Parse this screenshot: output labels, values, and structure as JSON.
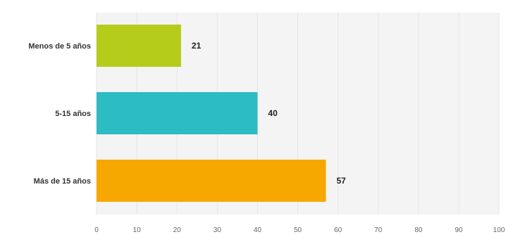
{
  "chart_data": {
    "type": "bar",
    "orientation": "horizontal",
    "categories": [
      "Menos de 5 años",
      "5-15 años",
      "Más de 15 años"
    ],
    "values": [
      21,
      40,
      57
    ],
    "value_labels": [
      "21",
      "40",
      "57"
    ],
    "colors": [
      "#b5cc1a",
      "#2bbcc4",
      "#f6a800"
    ],
    "xlim": [
      0,
      100
    ],
    "xticks": [
      "0",
      "10",
      "20",
      "30",
      "40",
      "50",
      "60",
      "70",
      "80",
      "90",
      "100"
    ],
    "grid": true,
    "legend": "none"
  }
}
